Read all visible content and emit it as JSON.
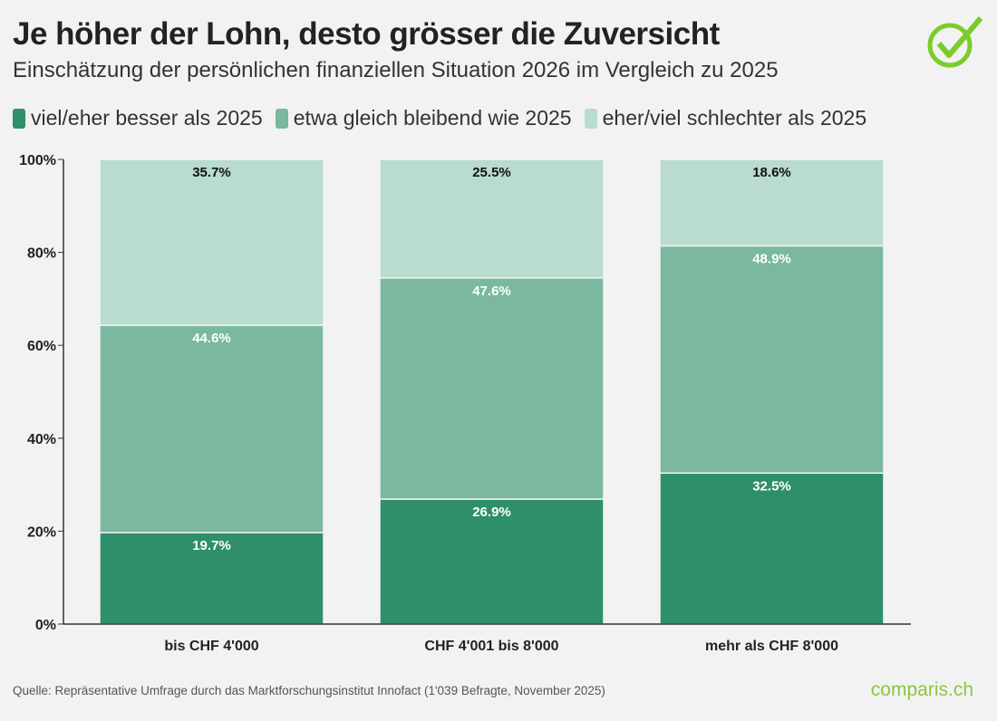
{
  "title": "Je höher der Lohn, desto grösser die Zuversicht",
  "subtitle": "Einschätzung der persönlichen finanziellen Situation 2026 im Vergleich zu 2025",
  "source": "Quelle: Repräsentative Umfrage durch das Marktforschungsinstitut Innofact (1'039 Befragte, November 2025)",
  "brand": "comparis.ch",
  "logo_icon": "check-circle-icon",
  "colors": {
    "better": "#2e8f6a",
    "same": "#7ab8a0",
    "worse": "#b9dccf",
    "logo": "#7ccc29"
  },
  "chart_data": {
    "type": "bar",
    "stacked": true,
    "categories": [
      "bis CHF 4'000",
      "CHF 4'001 bis 8'000",
      "mehr als CHF 8'000"
    ],
    "series": [
      {
        "name": "viel/eher besser als 2025",
        "values": [
          19.7,
          26.9,
          32.5
        ],
        "labels": [
          "19.7%",
          "26.9%",
          "32.5%"
        ]
      },
      {
        "name": "etwa gleich bleibend wie 2025",
        "values": [
          44.6,
          47.6,
          48.9
        ],
        "labels": [
          "44.6%",
          "47.6%",
          "48.9%"
        ]
      },
      {
        "name": "eher/viel schlechter als 2025",
        "values": [
          35.7,
          25.5,
          18.6
        ],
        "labels": [
          "35.7%",
          "25.5%",
          "18.6%"
        ]
      }
    ],
    "ylim": [
      0,
      100
    ],
    "yticks": [
      "0%",
      "20%",
      "40%",
      "60%",
      "80%",
      "100%"
    ],
    "legend_position": "top-left",
    "grid": false
  }
}
